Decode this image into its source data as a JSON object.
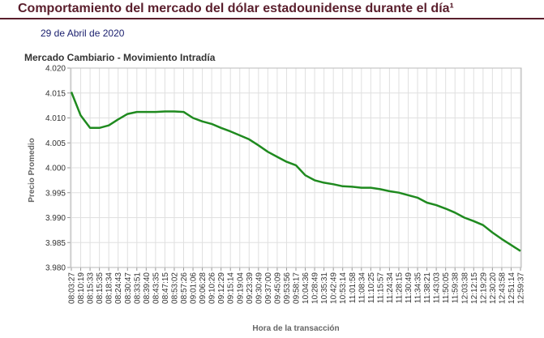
{
  "page": {
    "title": "Comportamiento del mercado del dólar estadounidense durante el día¹",
    "date": "29 de Abril de 2020",
    "colors": {
      "title": "#5a1e2c",
      "date": "#1a1f6e",
      "line": "#1f8a1f",
      "grid": "#e0e0e0"
    }
  },
  "chart_data": {
    "type": "line",
    "title": "Mercado Cambiario - Movimiento Intradía",
    "xlabel": "Hora de la transacción",
    "ylabel": "Precio Promedio",
    "ylim": [
      3.98,
      4.02
    ],
    "yticks": [
      "4.020",
      "4.015",
      "4.010",
      "4.005",
      "4.000",
      "3.995",
      "3.990",
      "3.985",
      "3.980"
    ],
    "grid": true,
    "categories": [
      "08:03:27",
      "08:10:19",
      "08:15:33",
      "08:15:35",
      "08:18:34",
      "08:24:43",
      "08:30:47",
      "08:33:51",
      "08:39:40",
      "08:43:35",
      "08:47:15",
      "08:53:02",
      "08:57:26",
      "09:01:06",
      "09:06:28",
      "09:10:26",
      "09:12:29",
      "09:15:14",
      "09:19:04",
      "09:23:39",
      "09:30:49",
      "09:37:00",
      "09:45:09",
      "09:53:56",
      "09:58:17",
      "10:04:36",
      "10:28:49",
      "10:35:31",
      "10:42:49",
      "10:53:14",
      "11:01:58",
      "11:08:34",
      "11:10:25",
      "11:15:57",
      "11:24:34",
      "11:28:15",
      "11:30:49",
      "11:34:35",
      "11:38:21",
      "11:43:03",
      "11:50:05",
      "11:59:38",
      "12:03:38",
      "12:12:15",
      "12:19:29",
      "12:30:20",
      "12:43:58",
      "12:51:14",
      "12:59:37"
    ],
    "series": [
      {
        "values": [
          4.0152,
          4.0105,
          4.008,
          4.008,
          4.0085,
          4.0097,
          4.0108,
          4.0112,
          4.0112,
          4.0112,
          4.0113,
          4.0113,
          4.0112,
          4.01,
          4.0093,
          4.0088,
          4.008,
          4.0073,
          4.0065,
          4.0057,
          4.0045,
          4.0032,
          4.0022,
          4.0012,
          4.0005,
          3.9985,
          3.9975,
          3.997,
          3.9967,
          3.9963,
          3.9962,
          3.996,
          3.996,
          3.9957,
          3.9953,
          3.995,
          3.9945,
          3.994,
          3.993,
          3.9925,
          3.9918,
          3.991,
          3.99,
          3.9893,
          3.9885,
          3.987,
          3.9857,
          3.9845,
          3.9833
        ]
      }
    ]
  }
}
